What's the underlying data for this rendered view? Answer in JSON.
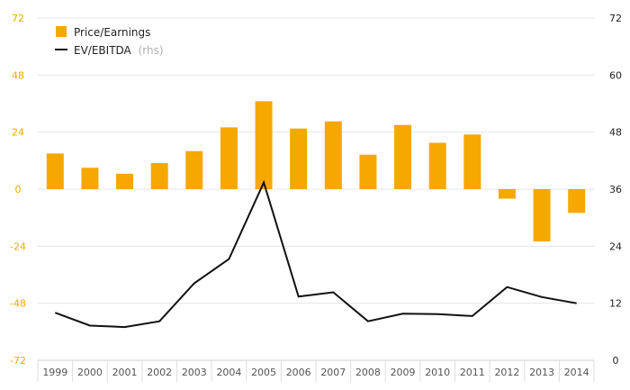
{
  "chart_data": {
    "type": "bar",
    "categories": [
      "1999",
      "2000",
      "2001",
      "2002",
      "2003",
      "2004",
      "2005",
      "2006",
      "2007",
      "2008",
      "2009",
      "2010",
      "2011",
      "2012",
      "2013",
      "2014"
    ],
    "series": [
      {
        "name": "Price/Earnings",
        "type": "bar",
        "axis": "left",
        "color": "#f5a800",
        "values": [
          15,
          9,
          6.5,
          11,
          16,
          26,
          37,
          25.5,
          28.5,
          14.5,
          27,
          19.5,
          23,
          -4,
          -22,
          -10
        ]
      },
      {
        "name": "EV/EBITDA",
        "axis_note": "(rhs)",
        "type": "line",
        "axis": "right",
        "color": "#111111",
        "values": [
          10,
          7.3,
          7,
          8.2,
          16.2,
          21.3,
          37.4,
          13.4,
          14.3,
          8.2,
          9.8,
          9.7,
          9.3,
          15.4,
          13.3,
          12
        ]
      }
    ],
    "left_axis": {
      "ylim": [
        -72,
        72
      ],
      "ticks": [
        "72",
        "48",
        "24",
        "0",
        "-24",
        "-48",
        "-72"
      ],
      "tick_color": "#f5a800"
    },
    "right_axis": {
      "ylim": [
        0,
        72
      ],
      "ticks": [
        "72",
        "60",
        "48",
        "36",
        "24",
        "12",
        "0"
      ],
      "tick_color": "#222222"
    },
    "grid": true,
    "legend": "top-left"
  }
}
